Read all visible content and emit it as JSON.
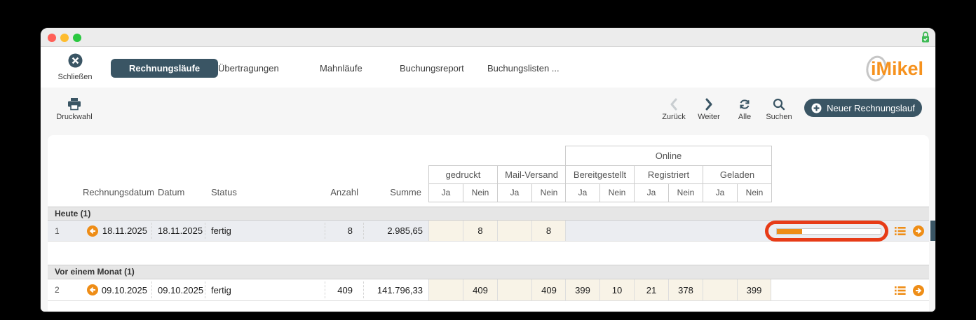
{
  "titlebar": {
    "lock_icon": "green-padlock-check"
  },
  "nav": {
    "close_label": "Schließen",
    "tabs": [
      {
        "label": "Rechnungsläufe",
        "active": true
      },
      {
        "label": "Übertragungen",
        "active": false
      },
      {
        "label": "Mahnläufe",
        "active": false
      },
      {
        "label": "Buchungsreport",
        "active": false
      },
      {
        "label": "Buchungslisten ...",
        "active": false
      }
    ],
    "logo_text": "iMikel"
  },
  "toolbar": {
    "druckwahl": "Druckwahl",
    "zurueck": "Zurück",
    "weiter": "Weiter",
    "alle": "Alle",
    "suchen": "Suchen",
    "neuer_rechnungslauf": "Neuer Rechnungslauf"
  },
  "table": {
    "headers": {
      "rechnungsdatum": "Rechnungsdatum",
      "datum": "Datum",
      "status": "Status",
      "anzahl": "Anzahl",
      "summe": "Summe",
      "gedruckt": "gedruckt",
      "mail_versand": "Mail-Versand",
      "online": "Online",
      "bereitgestellt": "Bereitgestellt",
      "registriert": "Registriert",
      "geladen": "Geladen",
      "ja": "Ja",
      "nein": "Nein"
    },
    "groups": [
      {
        "label": "Heute (1)",
        "rows": [
          {
            "num": "1",
            "rechnungsdatum": "18.11.2025",
            "datum": "18.11.2025",
            "status": "fertig",
            "anzahl": "8",
            "summe": "2.985,65",
            "cells": [
              "",
              "8",
              "",
              "8"
            ],
            "progress_percent": 24,
            "selected": true,
            "annotated": true
          }
        ]
      },
      {
        "label": "Vor einem Monat (1)",
        "rows": [
          {
            "num": "2",
            "rechnungsdatum": "09.10.2025",
            "datum": "09.10.2025",
            "status": "fertig",
            "anzahl": "409",
            "summe": "141.796,33",
            "cells": [
              "",
              "409",
              "",
              "409",
              "399",
              "10",
              "21",
              "378",
              "",
              "399"
            ]
          }
        ]
      }
    ]
  },
  "colors": {
    "accent_dark": "#3a5564",
    "accent_orange": "#ee8d17",
    "logo_orange": "#f6921e",
    "highlight_red": "#e73b17",
    "cream_cell": "#f8f3e7",
    "selected_row": "#ebedf1"
  }
}
